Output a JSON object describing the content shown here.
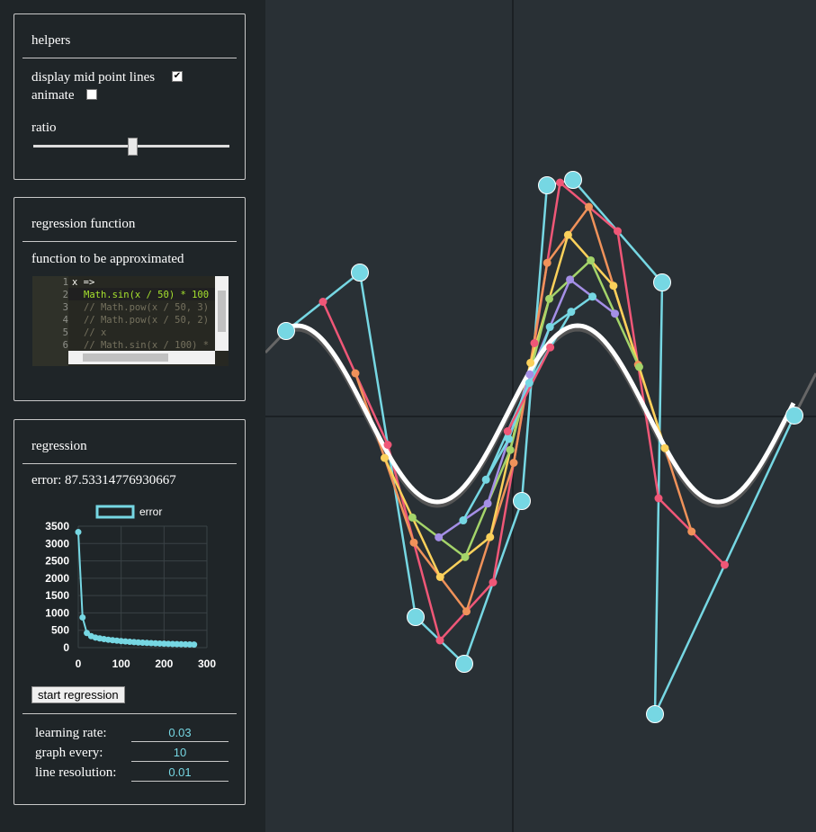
{
  "helpers": {
    "title": "helpers",
    "display_mid_point_lines": "display mid point lines",
    "animate": "animate",
    "ratio": "ratio"
  },
  "regression_function": {
    "title": "regression function",
    "subtitle": "function to be approximated",
    "code_lines": [
      {
        "number": 1,
        "text": "x =>"
      },
      {
        "number": 2,
        "text": "Math.sin(x / 50) * 100"
      },
      {
        "number": 3,
        "text": "// Math.pow(x / 50, 3)"
      },
      {
        "number": 4,
        "text": "// Math.pow(x / 50, 2)"
      },
      {
        "number": 5,
        "text": "// x"
      },
      {
        "number": 6,
        "text": "// Math.sin(x / 100) *"
      }
    ]
  },
  "regression": {
    "title": "regression",
    "error": "error: 87.53314776930667",
    "chart_data": {
      "type": "line",
      "x": [
        0,
        10,
        20,
        30,
        40,
        50,
        60,
        70,
        80,
        90,
        100,
        110,
        120,
        130,
        140,
        150,
        160,
        170,
        180,
        190,
        200,
        210,
        220,
        230,
        240,
        250,
        260,
        270
      ],
      "series": [
        {
          "name": "error",
          "color": "#76d7e3",
          "values": [
            3330,
            870,
            420,
            330,
            290,
            265,
            245,
            228,
            213,
            200,
            188,
            177,
            167,
            158,
            150,
            142,
            135,
            129,
            123,
            118,
            113,
            108,
            104,
            100,
            96,
            93,
            90,
            88
          ]
        }
      ],
      "xlim": [
        0,
        300
      ],
      "xticks": [
        0,
        100,
        200,
        300
      ],
      "ylim": [
        0,
        3500
      ],
      "yticks": [
        0,
        500,
        1000,
        1500,
        2000,
        2500,
        3000,
        3500
      ],
      "grid": true
    },
    "button": "start regression",
    "settings": [
      {
        "label": "learning rate:",
        "value": "0.03"
      },
      {
        "label": "graph every:",
        "value": "10"
      },
      {
        "label": "line resolution:",
        "value": "0.01"
      }
    ]
  }
}
